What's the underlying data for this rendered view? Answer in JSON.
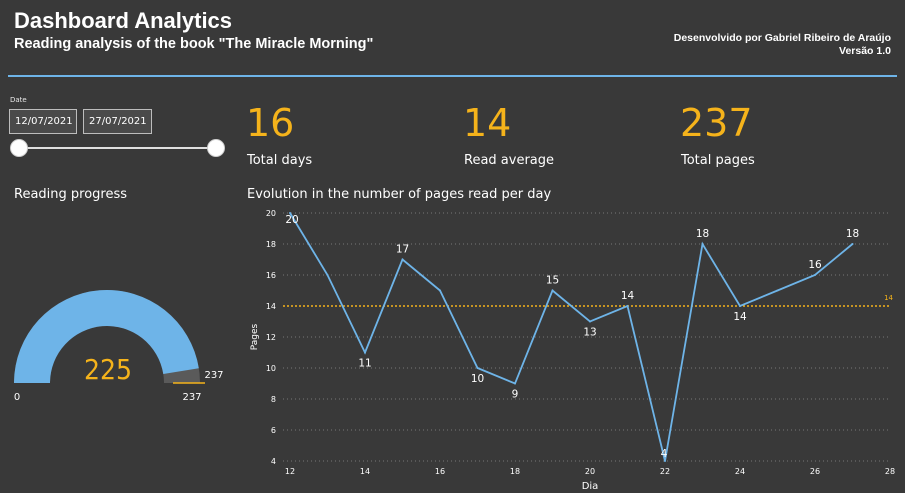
{
  "header": {
    "title": "Dashboard Analytics",
    "subtitle": "Reading analysis of the book \"The Miracle Morning\"",
    "credit_line1": "Desenvolvido por Gabriel Ribeiro de Araújo",
    "credit_line2": "Versão 1.0"
  },
  "filter": {
    "label": "Date",
    "start_date": "12/07/2021",
    "end_date": "27/07/2021"
  },
  "kpis": [
    {
      "value": "16",
      "label": "Total days"
    },
    {
      "value": "14",
      "label": "Read average"
    },
    {
      "value": "237",
      "label": "Total pages"
    }
  ],
  "gauge": {
    "title": "Reading progress",
    "value": 225,
    "min": 0,
    "max": 237,
    "target": 237,
    "min_label": "0",
    "max_label": "237",
    "target_label": "237",
    "value_label": "225"
  },
  "colors": {
    "background": "#393939",
    "accent": "#f5b31b",
    "line": "#6eb4e8",
    "grid": "#777777"
  },
  "chart_data": {
    "type": "line",
    "title": "Evolution in the number of pages read per day",
    "xlabel": "Dia",
    "ylabel": "Pages",
    "x": [
      12,
      13,
      14,
      15,
      16,
      17,
      18,
      19,
      20,
      21,
      22,
      23,
      24,
      25,
      26,
      27
    ],
    "series": [
      {
        "values": [
          20,
          16,
          11,
          17,
          15,
          10,
          9,
          15,
          13,
          14,
          4,
          18,
          14,
          15,
          16,
          18
        ]
      }
    ],
    "data_labels": [
      {
        "x": 12,
        "label": "20"
      },
      {
        "x": 14,
        "label": "11"
      },
      {
        "x": 15,
        "label": "17"
      },
      {
        "x": 17,
        "label": "10"
      },
      {
        "x": 18,
        "label": "9"
      },
      {
        "x": 19,
        "label": "15"
      },
      {
        "x": 20,
        "label": "13"
      },
      {
        "x": 21,
        "label": "14"
      },
      {
        "x": 22,
        "label": "4"
      },
      {
        "x": 23,
        "label": "18"
      },
      {
        "x": 24,
        "label": "14"
      },
      {
        "x": 26,
        "label": "16"
      },
      {
        "x": 27,
        "label": "18"
      }
    ],
    "reference_line": {
      "value": 14,
      "label": "14"
    },
    "xlim": [
      12,
      28
    ],
    "ylim": [
      4,
      20
    ],
    "xticks": [
      12,
      14,
      16,
      18,
      20,
      22,
      24,
      26,
      28
    ],
    "yticks": [
      4,
      6,
      8,
      10,
      12,
      14,
      16,
      18,
      20
    ],
    "grid": true
  }
}
